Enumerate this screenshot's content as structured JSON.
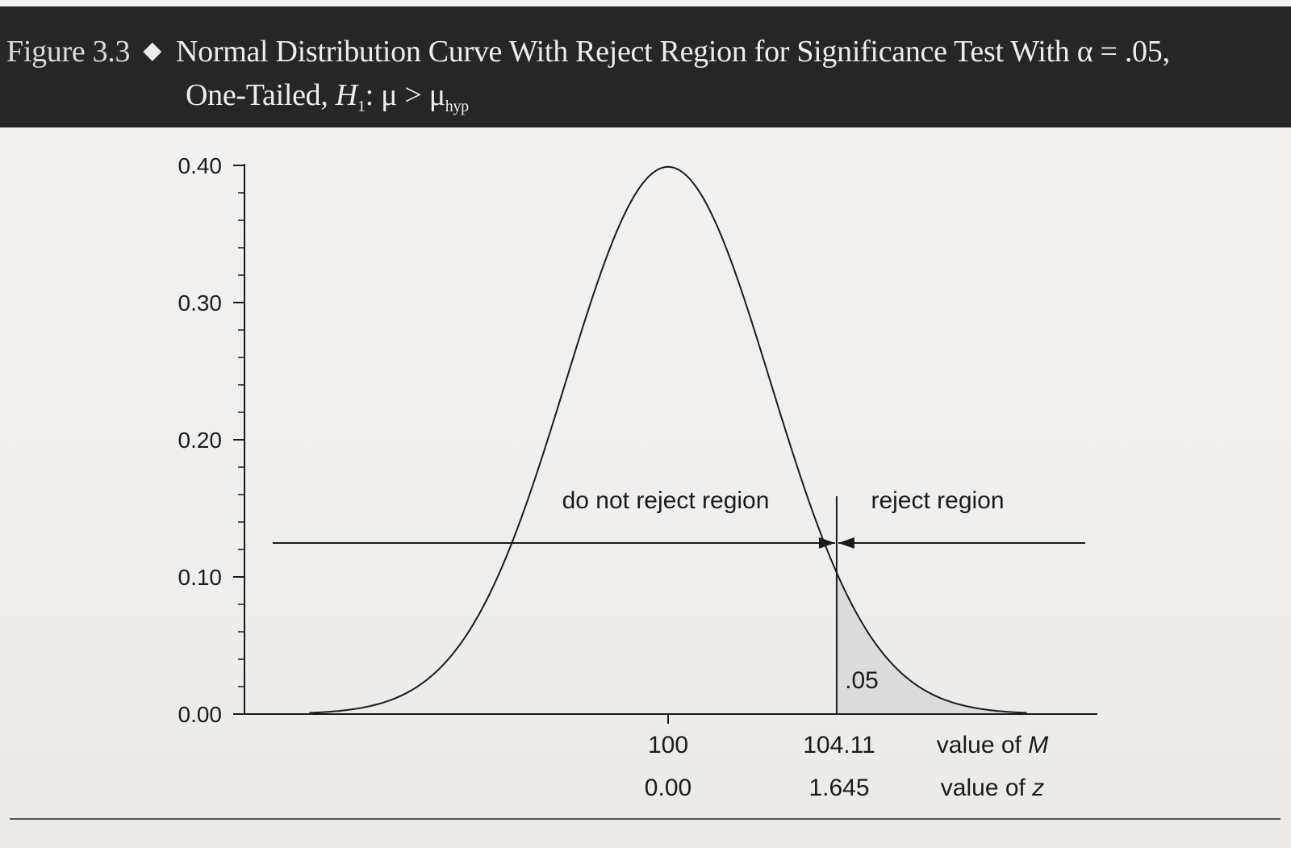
{
  "figure": {
    "label": "Figure 3.3",
    "title_line1": "Normal Distribution Curve With Reject Region for Significance Test With α = .05,",
    "title_line2_prefix": "One-Tailed, ",
    "hypothesis_symbol": "H",
    "hypothesis_sub": "1",
    "hypothesis_relation": ": μ > μ",
    "hypothesis_rhs_sub": "hyp"
  },
  "chart_data": {
    "type": "area",
    "distribution": "normal",
    "mean_M": 100,
    "critical_M": 104.11,
    "critical_z": 1.645,
    "alpha": 0.05,
    "tail": "upper",
    "ylim": [
      0.0,
      0.4
    ],
    "y_ticks": [
      "0.40",
      "0.30",
      "0.20",
      "0.10",
      "0.00"
    ],
    "y_tick_values": [
      0.4,
      0.3,
      0.2,
      0.1,
      0.0
    ],
    "z_range": [
      -3.5,
      3.5
    ],
    "x_labels_M": [
      "100",
      "104.11"
    ],
    "x_labels_z": [
      "0.00",
      "1.645"
    ],
    "x_row_label_M_prefix": "value of ",
    "x_row_label_M_var": "M",
    "x_row_label_z_prefix": "value of ",
    "x_row_label_z_var": "z",
    "region_do_not_reject": "do not reject region",
    "region_reject": "reject region",
    "shaded_area_label": ".05",
    "shade_color": "#dcdcdc",
    "line_color": "#1b1b1b"
  }
}
